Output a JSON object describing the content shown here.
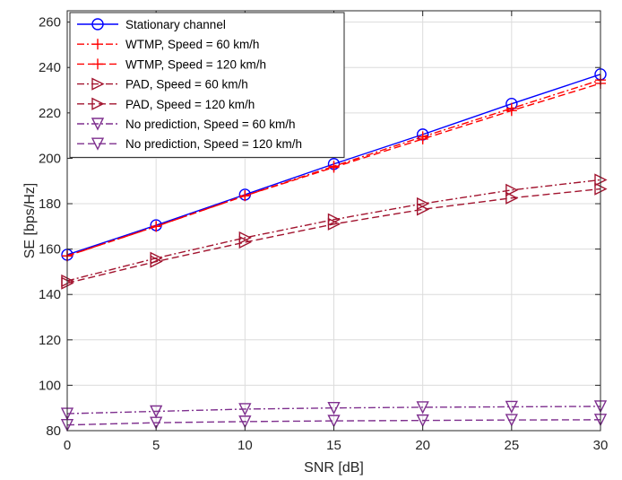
{
  "chart_data": {
    "type": "line",
    "xlabel": "SNR [dB]",
    "ylabel": "SE [bps/Hz]",
    "xlim": [
      0,
      30
    ],
    "ylim": [
      80,
      265
    ],
    "xticks": [
      0,
      5,
      10,
      15,
      20,
      25,
      30
    ],
    "yticks": [
      80,
      100,
      120,
      140,
      160,
      180,
      200,
      220,
      240,
      260
    ],
    "grid": true,
    "legend_position": "top-left",
    "x": [
      0,
      5,
      10,
      15,
      20,
      25,
      30
    ],
    "series": [
      {
        "name": "Stationary channel",
        "color": "#0000ff",
        "dash": "solid",
        "marker": "circle",
        "values": [
          157.5,
          170.5,
          184,
          197.5,
          210.5,
          224,
          237
        ]
      },
      {
        "name": "WTMP, Speed = 60 km/h",
        "color": "#ff0000",
        "dash": "dashdot",
        "marker": "plus",
        "values": [
          157,
          170,
          183.5,
          196.5,
          209.5,
          222,
          234.5
        ]
      },
      {
        "name": "WTMP, Speed = 120 km/h",
        "color": "#ff0000",
        "dash": "dashed",
        "marker": "plus",
        "values": [
          157,
          170,
          183.5,
          196,
          208.5,
          221,
          233
        ]
      },
      {
        "name": "PAD, Speed = 60 km/h",
        "color": "#a2142f",
        "dash": "dashdot",
        "marker": "triangle-right",
        "values": [
          146,
          156,
          165,
          173,
          180,
          186,
          190.5
        ]
      },
      {
        "name": "PAD, Speed = 120 km/h",
        "color": "#a2142f",
        "dash": "dashed",
        "marker": "triangle-right",
        "values": [
          145,
          154.5,
          163,
          171,
          177.5,
          182.5,
          186.5
        ]
      },
      {
        "name": "No prediction, Speed = 60 km/h",
        "color": "#7e2f8e",
        "dash": "dashdot",
        "marker": "triangle-down",
        "values": [
          87.5,
          88.5,
          89.5,
          90,
          90.3,
          90.5,
          90.7
        ]
      },
      {
        "name": "No prediction, Speed = 120 km/h",
        "color": "#7e2f8e",
        "dash": "dashed",
        "marker": "triangle-down",
        "values": [
          82.5,
          83.5,
          84,
          84.3,
          84.5,
          84.7,
          84.8
        ]
      }
    ]
  }
}
